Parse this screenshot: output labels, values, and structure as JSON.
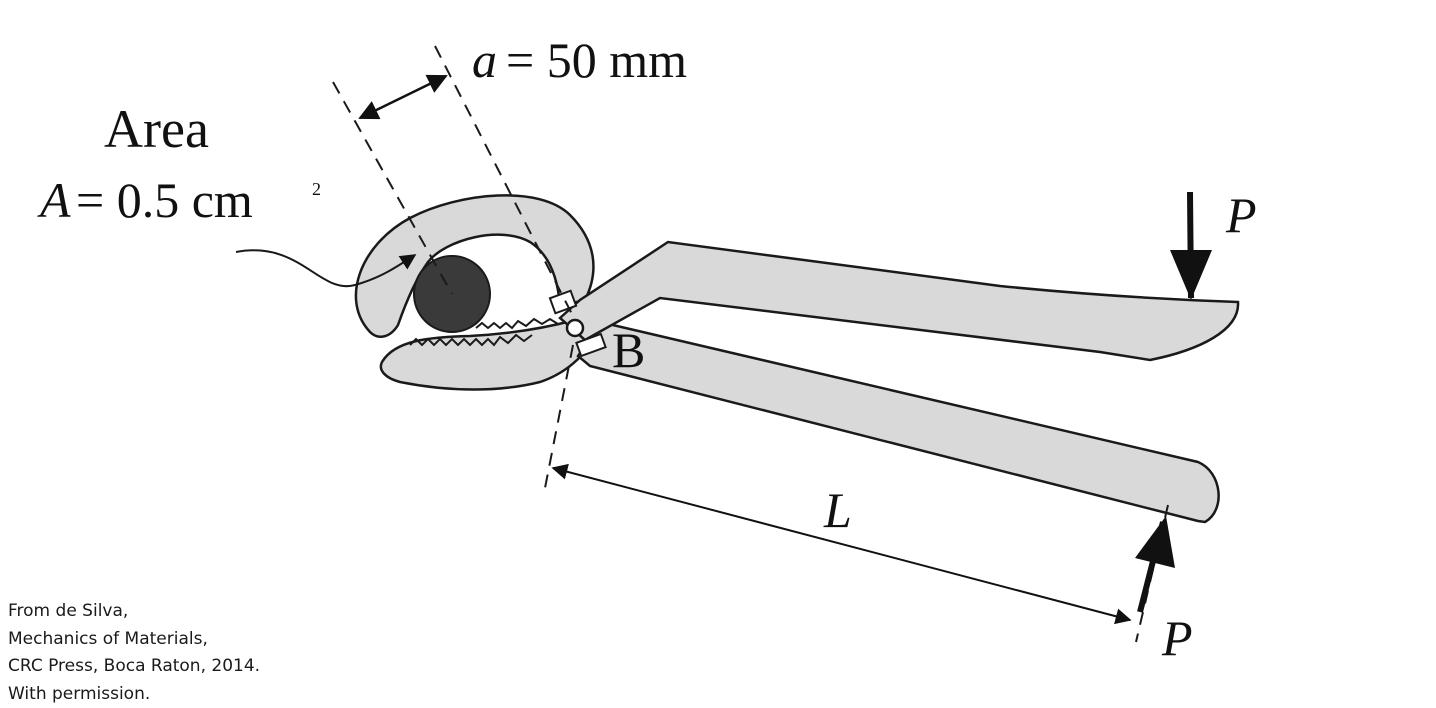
{
  "labels": {
    "area_title": "Area",
    "area_var": "A",
    "area_value": "= 0.5 cm",
    "area_exponent": "2",
    "a_var": "a",
    "a_value": "= 50 mm",
    "pivot": "B",
    "load_top": "P",
    "load_bottom": "P",
    "length": "L"
  },
  "credit": [
    "From de Silva,",
    "Mechanics of Materials,",
    "CRC Press, Boca Raton, 2014.",
    "With permission."
  ],
  "colors": {
    "handle_fill": "#d9d9d9",
    "pin_fill": "#3a3a3a",
    "outline": "#1a1a1a",
    "background": "#ffffff"
  }
}
